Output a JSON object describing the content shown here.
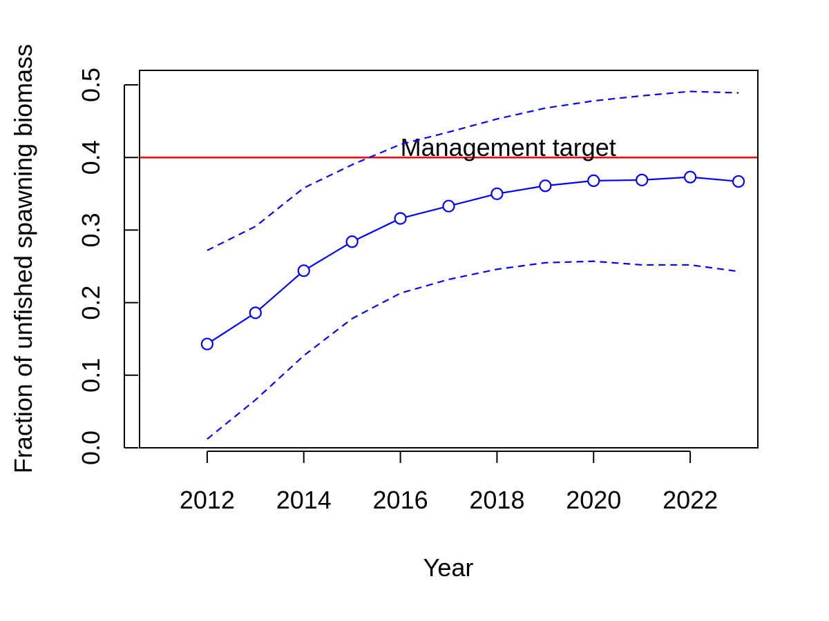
{
  "chart_data": {
    "type": "line",
    "title": "",
    "xlabel": "Year",
    "ylabel": "Fraction of unfished spawning biomass",
    "xlim": [
      2010.6,
      2023.4
    ],
    "ylim": [
      0.0,
      0.52
    ],
    "x_ticks": [
      2012,
      2014,
      2016,
      2018,
      2020,
      2022
    ],
    "y_ticks": [
      0.0,
      0.1,
      0.2,
      0.3,
      0.4,
      0.5
    ],
    "x_tick_labels": [
      "2012",
      "2014",
      "2016",
      "2018",
      "2020",
      "2022"
    ],
    "y_tick_labels": [
      "0.0",
      "0.1",
      "0.2",
      "0.3",
      "0.4",
      "0.5"
    ],
    "grid": false,
    "x": [
      2012,
      2013,
      2014,
      2015,
      2016,
      2017,
      2018,
      2019,
      2020,
      2021,
      2022,
      2023
    ],
    "series": [
      {
        "values": [
          0.143,
          0.186,
          0.244,
          0.284,
          0.316,
          0.333,
          0.35,
          0.361,
          0.368,
          0.369,
          0.373,
          0.367
        ],
        "color": "#0000ff",
        "style": "solid",
        "markers": "open-circle"
      },
      {
        "values": [
          0.272,
          0.305,
          0.358,
          0.39,
          0.418,
          0.435,
          0.453,
          0.468,
          0.478,
          0.485,
          0.491,
          0.489
        ],
        "color": "#0000ff",
        "style": "dashed",
        "markers": "none"
      },
      {
        "values": [
          0.012,
          0.066,
          0.127,
          0.178,
          0.213,
          0.232,
          0.246,
          0.255,
          0.257,
          0.252,
          0.252,
          0.243
        ],
        "color": "#0000ff",
        "style": "dashed",
        "markers": "none"
      }
    ],
    "reference_line": {
      "y": 0.4,
      "color": "#ff0000",
      "label": "Management target",
      "label_x": 2016
    }
  }
}
